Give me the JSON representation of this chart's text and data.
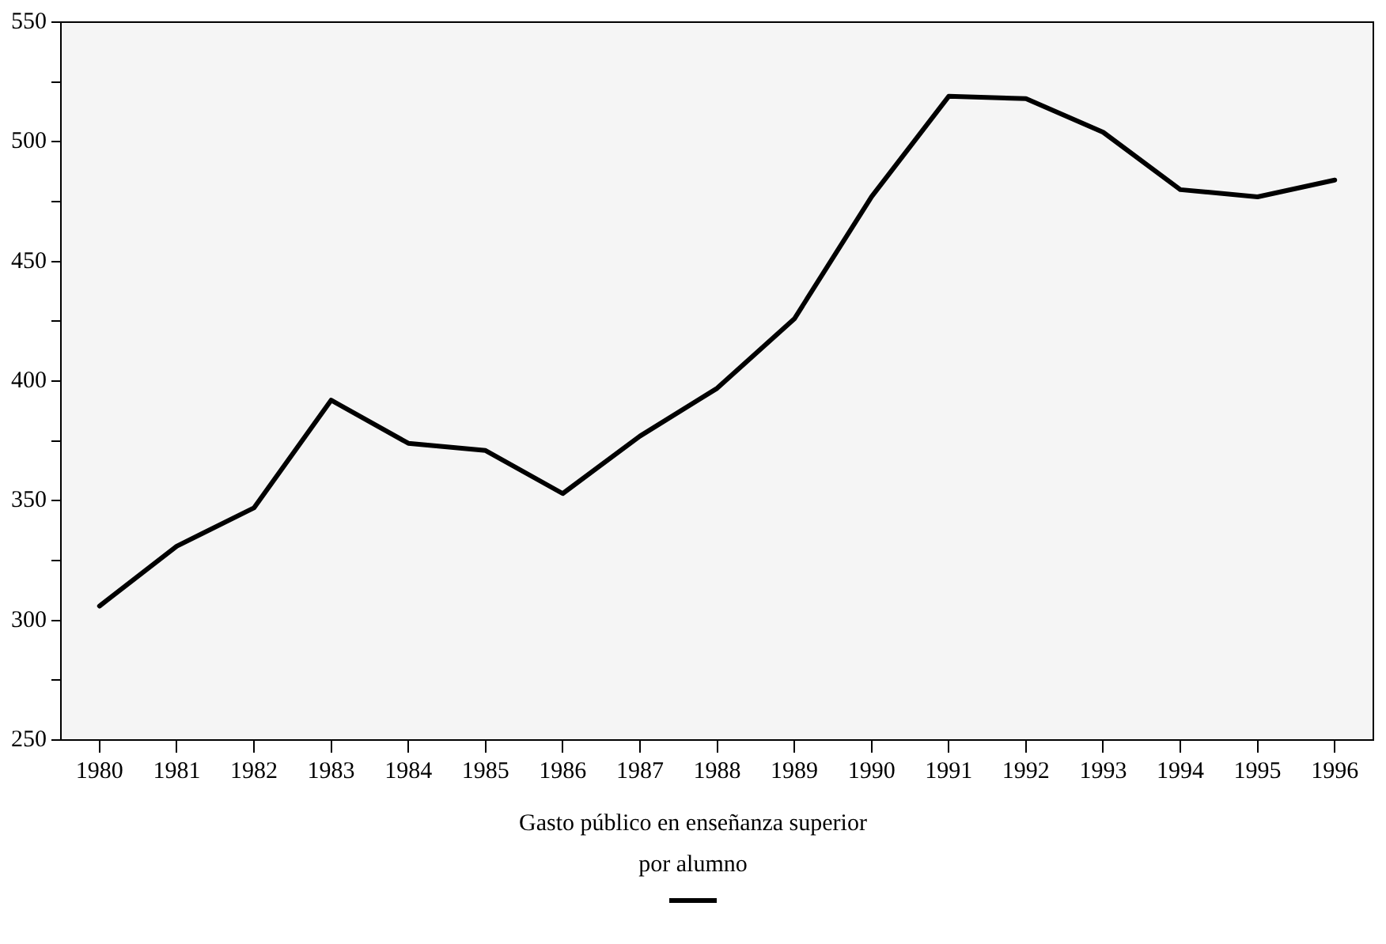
{
  "chart_data": {
    "type": "line",
    "categories": [
      "1980",
      "1981",
      "1982",
      "1983",
      "1984",
      "1985",
      "1986",
      "1987",
      "1988",
      "1989",
      "1990",
      "1991",
      "1992",
      "1993",
      "1994",
      "1995",
      "1996"
    ],
    "series": [
      {
        "name": "Gasto público en enseñanza superior por alumno",
        "color": "#000000",
        "values": [
          306,
          331,
          347,
          392,
          374,
          371,
          353,
          377,
          397,
          426,
          477,
          519,
          518,
          504,
          480,
          477,
          484
        ]
      }
    ],
    "ylim": [
      250,
      550
    ],
    "yticks": [
      250,
      {
        "value": 275,
        "label": null
      },
      300,
      {
        "value": 325,
        "label": null
      },
      350,
      {
        "value": 375,
        "label": null
      },
      400,
      {
        "value": 425,
        "label": null
      },
      450,
      {
        "value": 475,
        "label": null
      },
      500,
      {
        "value": 525,
        "label": null
      },
      550
    ],
    "grid": false,
    "legend": "bottom",
    "marker": "none",
    "line_style": "solid"
  }
}
